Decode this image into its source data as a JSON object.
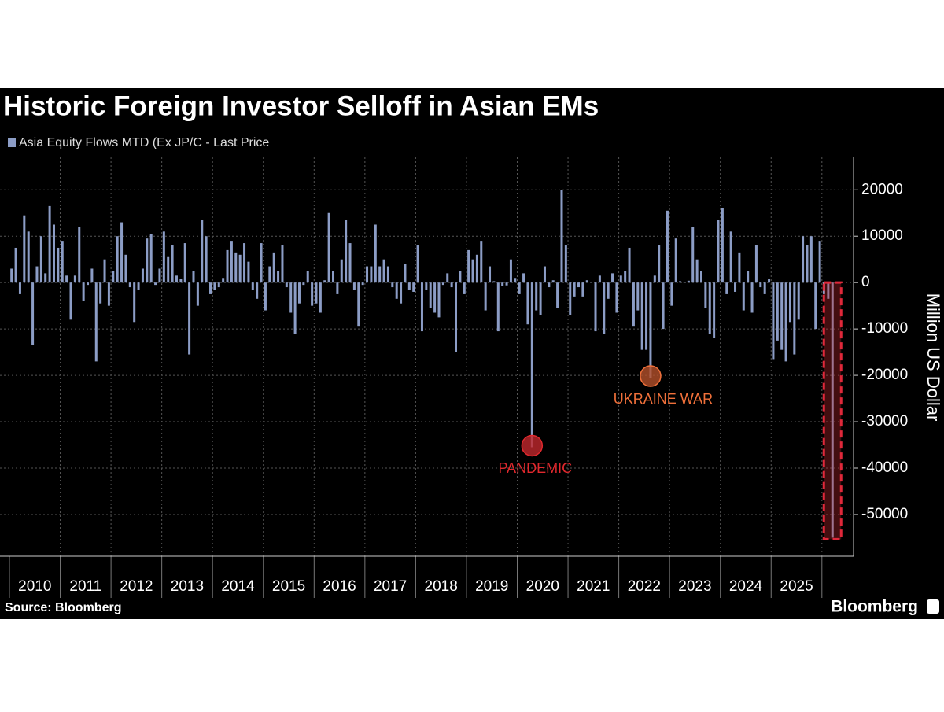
{
  "chart_data": {
    "type": "bar",
    "title": "Historic Foreign Investor Selloff in Asian EMs",
    "legend_label": "Asia Equity Flows MTD (Ex JP/C - Last Price",
    "y_axis_label": "Million US Dollar",
    "source": "Source: Bloomberg",
    "brand": "Bloomberg",
    "annotations": [
      "PANDEMIC",
      "UKRAINE WAR"
    ],
    "color": "#8c9dc6",
    "categories": [
      "2010",
      "2011",
      "2012",
      "2013",
      "2014",
      "2015",
      "2016",
      "2017",
      "2018",
      "2019",
      "2020",
      "2021",
      "2022",
      "2023",
      "2024",
      "2025",
      null
    ],
    "values": [
      [
        3000,
        7500,
        -2500,
        14500,
        11000,
        -13500,
        3500,
        10000,
        2000,
        16500,
        12500,
        7500
      ],
      [
        9000,
        1500,
        -8000,
        1500,
        12000,
        -4000,
        -500,
        3000,
        -17000,
        -4500,
        5000,
        -5000
      ],
      [
        2500,
        10000,
        13000,
        6000,
        -1000,
        -8500,
        -1500,
        3000,
        9500,
        10500,
        -500,
        3000
      ],
      [
        11000,
        5500,
        8000,
        1500,
        800,
        8500,
        -15500,
        2500,
        -5000,
        13500,
        10000,
        -2500
      ],
      [
        -1500,
        -1000,
        1000,
        7000,
        9000,
        6500,
        6000,
        8500,
        4500,
        -1500,
        -3500,
        8500
      ],
      [
        -6000,
        3500,
        6500,
        2500,
        8000,
        -1000,
        -6500,
        -11000,
        -4500,
        -500,
        2500,
        -5000
      ],
      [
        -4500,
        -6500,
        500,
        15000,
        2500,
        -2500,
        5000,
        13500,
        8500,
        -1500,
        -9500,
        -500
      ],
      [
        3500,
        3500,
        12500,
        3500,
        5000,
        3500,
        -1000,
        -3500,
        -4500,
        4000,
        -1500,
        -2000
      ],
      [
        8000,
        -10500,
        -1500,
        -5500,
        -6500,
        -7500,
        -500,
        2000,
        -1000,
        -15000,
        2500,
        -2500
      ],
      [
        7000,
        5000,
        6000,
        9000,
        -6000,
        3500,
        300,
        -10500,
        -800,
        -600,
        5000,
        1000
      ],
      [
        -2500,
        2000,
        -9000,
        -35500,
        -6000,
        -7000,
        3500,
        -1000,
        500,
        -5500,
        20000,
        8000
      ],
      [
        -7000,
        -3000,
        -1000,
        -3000,
        500,
        200,
        -10500,
        1500,
        -11000,
        -3500,
        2000,
        -6500
      ],
      [
        1500,
        2500,
        7500,
        -9500,
        -6000,
        -14500,
        -14500,
        -20500,
        1500,
        8000,
        -10000,
        15500
      ],
      [
        -5000,
        9500,
        300,
        200,
        400,
        12000,
        5000,
        2500,
        -5500,
        -11000,
        -12000,
        13500
      ],
      [
        16000,
        -2500,
        11000,
        -2000,
        6500,
        -6000,
        2500,
        -6500,
        8000,
        -1000,
        -2500,
        700
      ],
      [
        -16500,
        -12500,
        -14500,
        -17000,
        -8500,
        -15500,
        -8000,
        10000,
        8000,
        10000,
        -10000,
        9000
      ],
      [
        -2500,
        -3500,
        -55000
      ]
    ],
    "ylim": [
      -59000,
      27000
    ],
    "yticks": [
      20000,
      10000,
      0,
      -10000,
      -20000,
      -30000,
      -40000,
      -50000
    ],
    "grid": true
  }
}
